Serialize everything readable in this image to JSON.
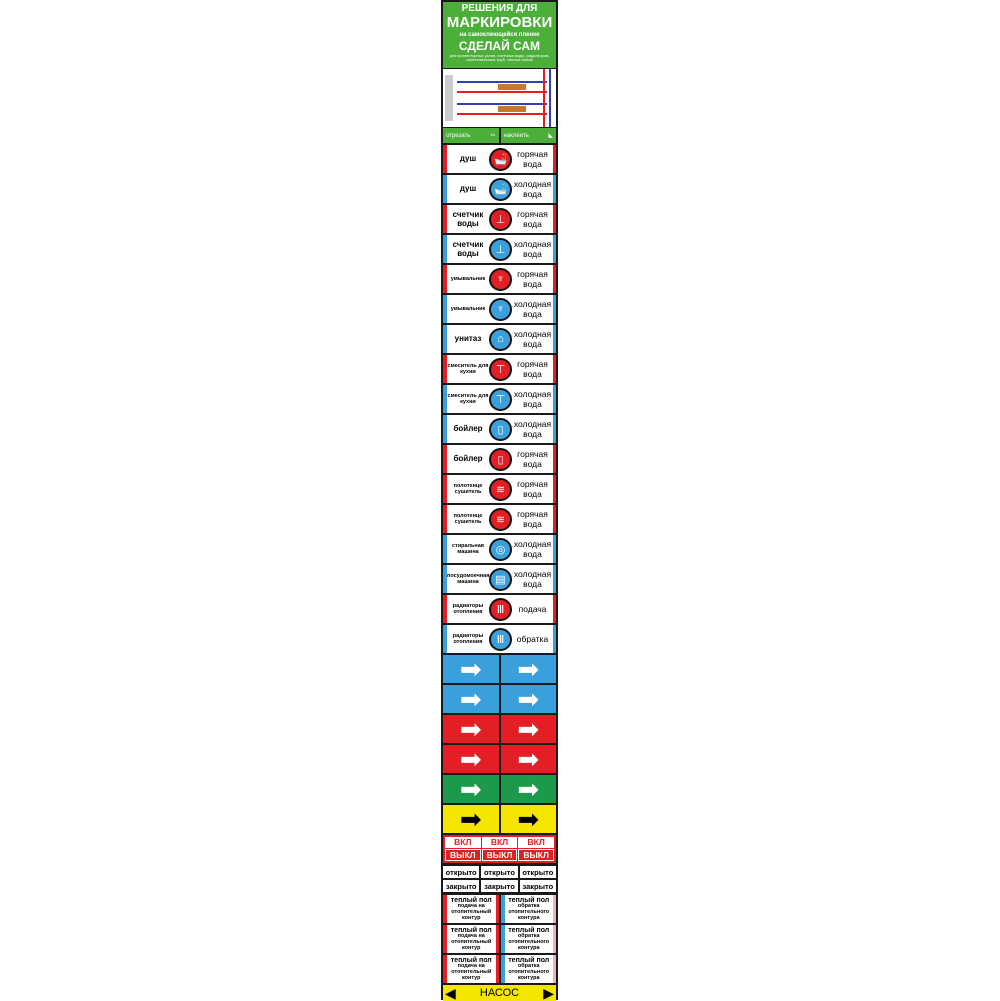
{
  "header": {
    "line1": "РЕШЕНИЯ ДЛЯ",
    "line2": "МАРКИРОВКИ",
    "line3": "на самоклеющейся пленке",
    "line4": "СДЕЛАЙ САМ",
    "line5": "для коллекторных узлов, счетчика воды, радиаторов, сантехнических труб, теплых полов"
  },
  "greenbar": {
    "cut": "отрезать",
    "stick": "наклеить"
  },
  "colors": {
    "red": "#e31e24",
    "blue": "#3aa0dc",
    "green": "#4caf3a",
    "yellow": "#f5e600"
  },
  "labels": [
    {
      "left": "душ",
      "right": "горячая вода",
      "color": "red",
      "icon": "shower-icon"
    },
    {
      "left": "душ",
      "right": "холодная вода",
      "color": "blue",
      "icon": "shower-icon"
    },
    {
      "left": "счетчик воды",
      "right": "горячая вода",
      "color": "red",
      "icon": "water-meter-icon"
    },
    {
      "left": "счетчик воды",
      "right": "холодная вода",
      "color": "blue",
      "icon": "water-meter-icon"
    },
    {
      "left": "умывальник",
      "right": "горячая вода",
      "color": "red",
      "icon": "sink-icon"
    },
    {
      "left": "умывальник",
      "right": "холодная вода",
      "color": "blue",
      "icon": "sink-icon"
    },
    {
      "left": "унитаз",
      "right": "холодная вода",
      "color": "blue",
      "icon": "toilet-icon"
    },
    {
      "left": "смеситель для кухни",
      "right": "горячая вода",
      "color": "red",
      "icon": "faucet-icon"
    },
    {
      "left": "смеситель для кухни",
      "right": "холодная вода",
      "color": "blue",
      "icon": "faucet-icon"
    },
    {
      "left": "бойлер",
      "right": "холодная вода",
      "color": "blue",
      "icon": "boiler-icon"
    },
    {
      "left": "бойлер",
      "right": "горячая вода",
      "color": "red",
      "icon": "boiler-icon"
    },
    {
      "left": "полотенце сушитель",
      "right": "горячая вода",
      "color": "red",
      "icon": "towel-dryer-icon"
    },
    {
      "left": "полотенце сушитель",
      "right": "горячая вода",
      "color": "red",
      "icon": "towel-dryer-icon"
    },
    {
      "left": "стиральная машина",
      "right": "холодная вода",
      "color": "blue",
      "icon": "washing-machine-icon"
    },
    {
      "left": "посудомоечная машина",
      "right": "холодная вода",
      "color": "blue",
      "icon": "dishwasher-icon"
    },
    {
      "left": "радиаторы отопления",
      "right": "подача",
      "color": "red",
      "icon": "radiator-icon"
    },
    {
      "left": "радиаторы отопления",
      "right": "обратка",
      "color": "blue",
      "icon": "radiator-icon"
    }
  ],
  "arrows": [
    {
      "bg": "#3aa0dc",
      "fg": "#fff"
    },
    {
      "bg": "#3aa0dc",
      "fg": "#fff"
    },
    {
      "bg": "#e31e24",
      "fg": "#fff"
    },
    {
      "bg": "#e31e24",
      "fg": "#fff"
    },
    {
      "bg": "#1a9a4a",
      "fg": "#fff"
    },
    {
      "bg": "#f5e600",
      "fg": "#000"
    }
  ],
  "switch": {
    "on": "ВКЛ",
    "off": "ВЫКЛ"
  },
  "valve": {
    "open": "открыто",
    "closed": "закрыто"
  },
  "floor": {
    "title": "теплый пол",
    "supply": "подача на отопительный контур",
    "return": "обратка отопительного контура"
  },
  "pump": "НАСОС"
}
